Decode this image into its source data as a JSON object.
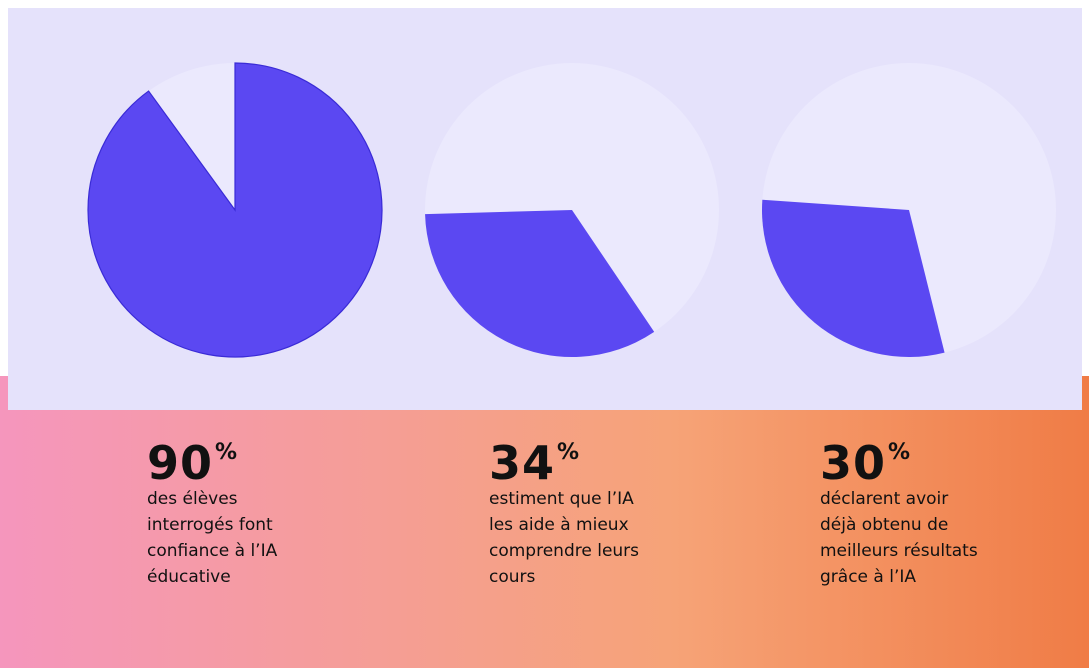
{
  "colors": {
    "accent": "#5b48f2",
    "remainder": "#ebe9fd",
    "panel": "#e5e2fb"
  },
  "chart_data": [
    {
      "type": "pie",
      "categories": [
        "",
        ""
      ],
      "values": [
        90,
        10
      ],
      "title": ""
    },
    {
      "type": "pie",
      "categories": [
        "",
        ""
      ],
      "values": [
        34,
        66
      ],
      "title": ""
    },
    {
      "type": "pie",
      "categories": [
        "",
        ""
      ],
      "values": [
        30,
        70
      ],
      "title": ""
    }
  ],
  "stats": [
    {
      "value": "90",
      "unit": "%",
      "description": "des élèves\ninterrogés font\nconfiance à l’IA\néducative"
    },
    {
      "value": "34",
      "unit": "%",
      "description": "estiment que l’IA\nles aide à mieux\ncomprendre leurs\ncours"
    },
    {
      "value": "30",
      "unit": "%",
      "description": "déclarent avoir\ndéjà obtenu de\nmeilleurs résultats\ngrâce à l’IA"
    }
  ]
}
